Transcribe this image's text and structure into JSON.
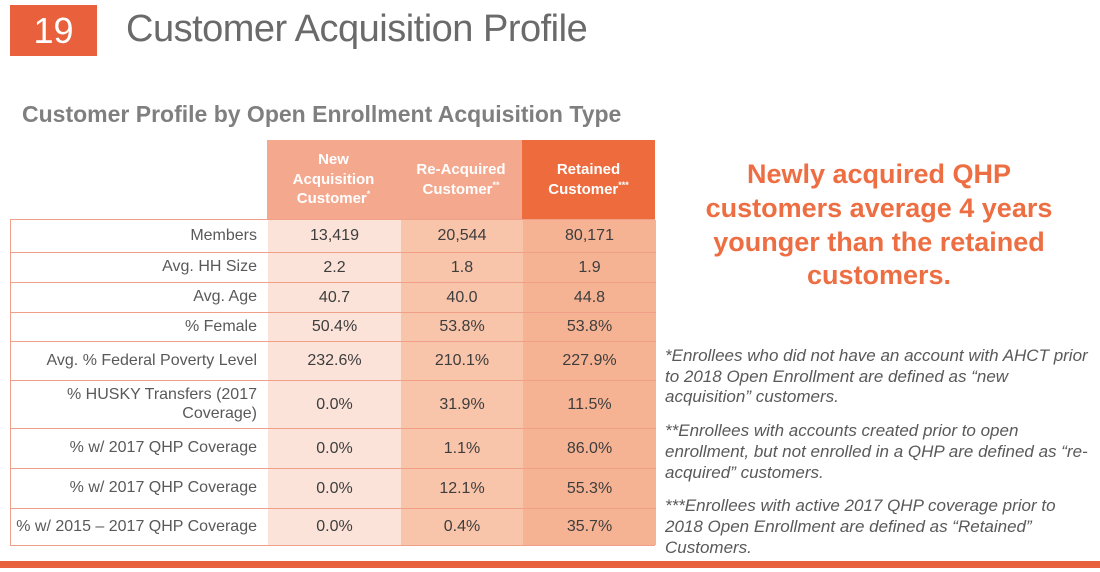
{
  "slide": {
    "page_number": "19",
    "title": "Customer Acquisition Profile",
    "section_heading": "Customer Profile by Open Enrollment Acquisition Type"
  },
  "table": {
    "columns": [
      {
        "label": "New Acquisition Customer",
        "marker": "*"
      },
      {
        "label": "Re-Acquired Customer",
        "marker": "**"
      },
      {
        "label": "Retained Customer",
        "marker": "***"
      }
    ],
    "rows": [
      {
        "label": "Members",
        "values": [
          "13,419",
          "20,544",
          "80,171"
        ]
      },
      {
        "label": "Avg. HH Size",
        "values": [
          "2.2",
          "1.8",
          "1.9"
        ]
      },
      {
        "label": "Avg. Age",
        "values": [
          "40.7",
          "40.0",
          "44.8"
        ]
      },
      {
        "label": "% Female",
        "values": [
          "50.4%",
          "53.8%",
          "53.8%"
        ]
      },
      {
        "label": "Avg. % Federal Poverty Level",
        "values": [
          "232.6%",
          "210.1%",
          "227.9%"
        ]
      },
      {
        "label": "% HUSKY Transfers (2017 Coverage)",
        "values": [
          "0.0%",
          "31.9%",
          "11.5%"
        ]
      },
      {
        "label": "% w/ 2017 QHP Coverage",
        "values": [
          "0.0%",
          "1.1%",
          "86.0%"
        ]
      },
      {
        "label": "% w/ 2017 QHP Coverage",
        "values": [
          "0.0%",
          "12.1%",
          "55.3%"
        ]
      },
      {
        "label": "% w/ 2015 – 2017 QHP Coverage",
        "values": [
          "0.0%",
          "0.4%",
          "35.7%"
        ]
      }
    ]
  },
  "callout": {
    "text": "Newly acquired QHP customers average 4 years younger than the retained customers."
  },
  "footnotes": [
    "*Enrollees who did not have an account with AHCT prior to 2018 Open Enrollment are defined as “new acquisition” customers.",
    "**Enrollees with accounts created prior to open enrollment, but not enrolled in a QHP are defined as “re-acquired” customers.",
    "***Enrollees with active 2017 QHP coverage prior to 2018 Open Enrollment are defined as “Retained” Customers."
  ],
  "colors": {
    "accent": "#e8613c",
    "header-light": "#f4a88e",
    "header-dark": "#ed6b3d",
    "col1-bg": "#fbe3d9",
    "col2-bg": "#f8c4aa",
    "col3-bg": "#f5b394",
    "divider": "#f0a088",
    "callout": "#ed6e42"
  }
}
